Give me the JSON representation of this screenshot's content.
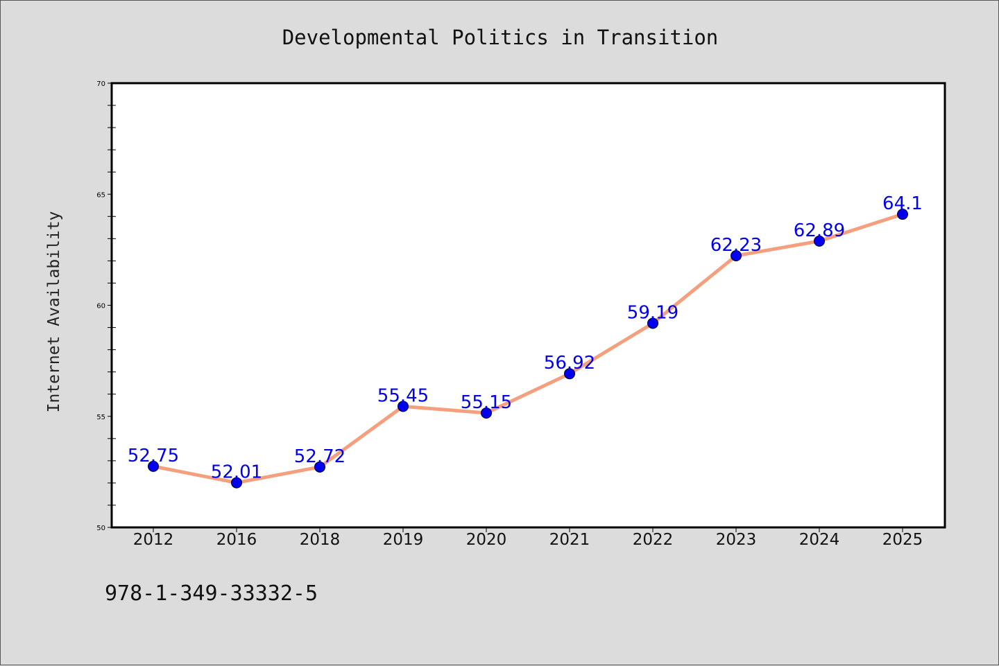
{
  "chart_data": {
    "type": "line",
    "title": "Developmental Politics in Transition",
    "ylabel": "Internet Availability",
    "xlabel": "",
    "categories": [
      "2012",
      "2016",
      "2018",
      "2019",
      "2020",
      "2021",
      "2022",
      "2023",
      "2024",
      "2025"
    ],
    "values": [
      52.75,
      52.01,
      52.72,
      55.45,
      55.15,
      56.92,
      59.19,
      62.23,
      62.89,
      64.1
    ],
    "data_labels": [
      "52.75",
      "52.01",
      "52.72",
      "55.45",
      "55.15",
      "56.92",
      "59.19",
      "62.23",
      "62.89",
      "64.1"
    ],
    "ylim": [
      50,
      70
    ],
    "yticks": [
      "50",
      "55",
      "60",
      "65",
      "70"
    ],
    "grid": false,
    "legend": "none",
    "colors": {
      "line": "#f4a07e",
      "marker": "#0000ee",
      "label": "#0000ee",
      "background": "#dcdcdc",
      "plot_area": "#ffffff"
    }
  },
  "footer": {
    "isbn": "978-1-349-33332-5"
  }
}
